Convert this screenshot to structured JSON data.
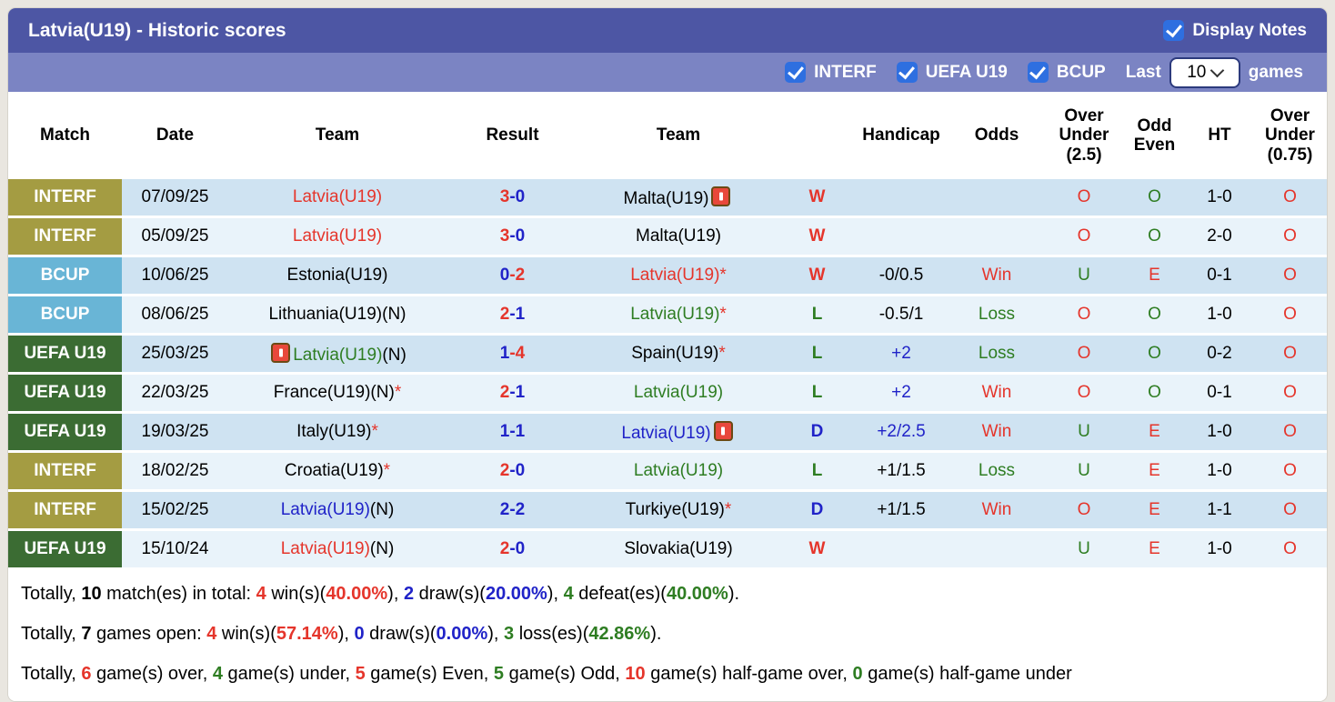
{
  "header": {
    "title": "Latvia(U19) - Historic scores",
    "display_notes_label": "Display Notes",
    "display_notes_checked": true
  },
  "filter_bar": {
    "checkboxes": [
      {
        "label": "INTERF",
        "checked": true
      },
      {
        "label": "UEFA U19",
        "checked": true
      },
      {
        "label": "BCUP",
        "checked": true
      }
    ],
    "last_label": "Last",
    "games_count": "10",
    "games_label": "games"
  },
  "table": {
    "headers": [
      "Match",
      "Date",
      "Team",
      "Result",
      "Team",
      "",
      "Handicap",
      "Odds",
      "Over\nUnder\n(2.5)",
      "Odd\nEven",
      "HT",
      "Over\nUnder\n(0.75)"
    ],
    "rows": [
      {
        "league": {
          "text": "INTERF",
          "style": "interf"
        },
        "date": "07/09/25",
        "home": {
          "name": "Latvia(U19)",
          "color": "red",
          "neutral": false,
          "star": false,
          "icon": null
        },
        "score": {
          "home": "3",
          "away": "0",
          "home_color": "red",
          "away_color": "blue"
        },
        "away": {
          "name": "Malta(U19)",
          "color": "black",
          "neutral": false,
          "star": false,
          "icon": "after"
        },
        "wdl": {
          "text": "W",
          "color": "red"
        },
        "handicap": {
          "text": "",
          "color": "black"
        },
        "odds": {
          "text": "",
          "color": "red"
        },
        "ou25": {
          "text": "O",
          "color": "red"
        },
        "oe": {
          "text": "O",
          "color": "green"
        },
        "ht": "1-0",
        "ou075": {
          "text": "O",
          "color": "red"
        }
      },
      {
        "league": {
          "text": "INTERF",
          "style": "interf"
        },
        "date": "05/09/25",
        "home": {
          "name": "Latvia(U19)",
          "color": "red",
          "neutral": false,
          "star": false,
          "icon": null
        },
        "score": {
          "home": "3",
          "away": "0",
          "home_color": "red",
          "away_color": "blue"
        },
        "away": {
          "name": "Malta(U19)",
          "color": "black",
          "neutral": false,
          "star": false,
          "icon": null
        },
        "wdl": {
          "text": "W",
          "color": "red"
        },
        "handicap": {
          "text": "",
          "color": "black"
        },
        "odds": {
          "text": "",
          "color": "red"
        },
        "ou25": {
          "text": "O",
          "color": "red"
        },
        "oe": {
          "text": "O",
          "color": "green"
        },
        "ht": "2-0",
        "ou075": {
          "text": "O",
          "color": "red"
        }
      },
      {
        "league": {
          "text": "BCUP",
          "style": "bcup"
        },
        "date": "10/06/25",
        "home": {
          "name": "Estonia(U19)",
          "color": "black",
          "neutral": false,
          "star": false,
          "icon": null
        },
        "score": {
          "home": "0",
          "away": "2",
          "home_color": "blue",
          "away_color": "red"
        },
        "away": {
          "name": "Latvia(U19)",
          "color": "red",
          "neutral": false,
          "star": true,
          "icon": null
        },
        "wdl": {
          "text": "W",
          "color": "red"
        },
        "handicap": {
          "text": "-0/0.5",
          "color": "black"
        },
        "odds": {
          "text": "Win",
          "color": "red"
        },
        "ou25": {
          "text": "U",
          "color": "green"
        },
        "oe": {
          "text": "E",
          "color": "red"
        },
        "ht": "0-1",
        "ou075": {
          "text": "O",
          "color": "red"
        }
      },
      {
        "league": {
          "text": "BCUP",
          "style": "bcup"
        },
        "date": "08/06/25",
        "home": {
          "name": "Lithuania(U19)",
          "color": "black",
          "neutral": true,
          "star": false,
          "icon": null
        },
        "score": {
          "home": "2",
          "away": "1",
          "home_color": "red",
          "away_color": "blue"
        },
        "away": {
          "name": "Latvia(U19)",
          "color": "green",
          "neutral": false,
          "star": true,
          "icon": null
        },
        "wdl": {
          "text": "L",
          "color": "green"
        },
        "handicap": {
          "text": "-0.5/1",
          "color": "black"
        },
        "odds": {
          "text": "Loss",
          "color": "green"
        },
        "ou25": {
          "text": "O",
          "color": "red"
        },
        "oe": {
          "text": "O",
          "color": "green"
        },
        "ht": "1-0",
        "ou075": {
          "text": "O",
          "color": "red"
        }
      },
      {
        "league": {
          "text": "UEFA U19",
          "style": "uefa"
        },
        "date": "25/03/25",
        "home": {
          "name": "Latvia(U19)",
          "color": "green",
          "neutral": true,
          "star": false,
          "icon": "before"
        },
        "score": {
          "home": "1",
          "away": "4",
          "home_color": "blue",
          "away_color": "red"
        },
        "away": {
          "name": "Spain(U19)",
          "color": "black",
          "neutral": false,
          "star": true,
          "icon": null
        },
        "wdl": {
          "text": "L",
          "color": "green"
        },
        "handicap": {
          "text": "+2",
          "color": "blue"
        },
        "odds": {
          "text": "Loss",
          "color": "green"
        },
        "ou25": {
          "text": "O",
          "color": "red"
        },
        "oe": {
          "text": "O",
          "color": "green"
        },
        "ht": "0-2",
        "ou075": {
          "text": "O",
          "color": "red"
        }
      },
      {
        "league": {
          "text": "UEFA U19",
          "style": "uefa"
        },
        "date": "22/03/25",
        "home": {
          "name": "France(U19)",
          "color": "black",
          "neutral": true,
          "star": true,
          "icon": null
        },
        "score": {
          "home": "2",
          "away": "1",
          "home_color": "red",
          "away_color": "blue"
        },
        "away": {
          "name": "Latvia(U19)",
          "color": "green",
          "neutral": false,
          "star": false,
          "icon": null
        },
        "wdl": {
          "text": "L",
          "color": "green"
        },
        "handicap": {
          "text": "+2",
          "color": "blue"
        },
        "odds": {
          "text": "Win",
          "color": "red"
        },
        "ou25": {
          "text": "O",
          "color": "red"
        },
        "oe": {
          "text": "O",
          "color": "green"
        },
        "ht": "0-1",
        "ou075": {
          "text": "O",
          "color": "red"
        }
      },
      {
        "league": {
          "text": "UEFA U19",
          "style": "uefa"
        },
        "date": "19/03/25",
        "home": {
          "name": "Italy(U19)",
          "color": "black",
          "neutral": false,
          "star": true,
          "icon": null
        },
        "score": {
          "home": "1",
          "away": "1",
          "home_color": "blue",
          "away_color": "blue"
        },
        "away": {
          "name": "Latvia(U19)",
          "color": "blue",
          "neutral": false,
          "star": false,
          "icon": "after"
        },
        "wdl": {
          "text": "D",
          "color": "blue"
        },
        "handicap": {
          "text": "+2/2.5",
          "color": "blue"
        },
        "odds": {
          "text": "Win",
          "color": "red"
        },
        "ou25": {
          "text": "U",
          "color": "green"
        },
        "oe": {
          "text": "E",
          "color": "red"
        },
        "ht": "1-0",
        "ou075": {
          "text": "O",
          "color": "red"
        }
      },
      {
        "league": {
          "text": "INTERF",
          "style": "interf"
        },
        "date": "18/02/25",
        "home": {
          "name": "Croatia(U19)",
          "color": "black",
          "neutral": false,
          "star": true,
          "icon": null
        },
        "score": {
          "home": "2",
          "away": "0",
          "home_color": "red",
          "away_color": "blue"
        },
        "away": {
          "name": "Latvia(U19)",
          "color": "green",
          "neutral": false,
          "star": false,
          "icon": null
        },
        "wdl": {
          "text": "L",
          "color": "green"
        },
        "handicap": {
          "text": "+1/1.5",
          "color": "black"
        },
        "odds": {
          "text": "Loss",
          "color": "green"
        },
        "ou25": {
          "text": "U",
          "color": "green"
        },
        "oe": {
          "text": "E",
          "color": "red"
        },
        "ht": "1-0",
        "ou075": {
          "text": "O",
          "color": "red"
        }
      },
      {
        "league": {
          "text": "INTERF",
          "style": "interf"
        },
        "date": "15/02/25",
        "home": {
          "name": "Latvia(U19)",
          "color": "blue",
          "neutral": true,
          "star": false,
          "icon": null
        },
        "score": {
          "home": "2",
          "away": "2",
          "home_color": "blue",
          "away_color": "blue"
        },
        "away": {
          "name": "Turkiye(U19)",
          "color": "black",
          "neutral": false,
          "star": true,
          "icon": null
        },
        "wdl": {
          "text": "D",
          "color": "blue"
        },
        "handicap": {
          "text": "+1/1.5",
          "color": "black"
        },
        "odds": {
          "text": "Win",
          "color": "red"
        },
        "ou25": {
          "text": "O",
          "color": "red"
        },
        "oe": {
          "text": "E",
          "color": "red"
        },
        "ht": "1-1",
        "ou075": {
          "text": "O",
          "color": "red"
        }
      },
      {
        "league": {
          "text": "UEFA U19",
          "style": "uefa"
        },
        "date": "15/10/24",
        "home": {
          "name": "Latvia(U19)",
          "color": "red",
          "neutral": true,
          "star": false,
          "icon": null
        },
        "score": {
          "home": "2",
          "away": "0",
          "home_color": "red",
          "away_color": "blue"
        },
        "away": {
          "name": "Slovakia(U19)",
          "color": "black",
          "neutral": false,
          "star": false,
          "icon": null
        },
        "wdl": {
          "text": "W",
          "color": "red"
        },
        "handicap": {
          "text": "",
          "color": "black"
        },
        "odds": {
          "text": "",
          "color": "red"
        },
        "ou25": {
          "text": "U",
          "color": "green"
        },
        "oe": {
          "text": "E",
          "color": "red"
        },
        "ht": "1-0",
        "ou075": {
          "text": "O",
          "color": "red"
        }
      }
    ]
  },
  "summary": {
    "lines": [
      [
        {
          "t": "Totally, ",
          "c": "black",
          "b": false
        },
        {
          "t": "10",
          "c": "black",
          "b": true
        },
        {
          "t": " match(es) in total: ",
          "c": "black",
          "b": false
        },
        {
          "t": "4",
          "c": "red",
          "b": true
        },
        {
          "t": " win(s)(",
          "c": "black",
          "b": false
        },
        {
          "t": "40.00%",
          "c": "red",
          "b": true
        },
        {
          "t": "), ",
          "c": "black",
          "b": false
        },
        {
          "t": "2",
          "c": "blue",
          "b": true
        },
        {
          "t": " draw(s)(",
          "c": "black",
          "b": false
        },
        {
          "t": "20.00%",
          "c": "blue",
          "b": true
        },
        {
          "t": "), ",
          "c": "black",
          "b": false
        },
        {
          "t": "4",
          "c": "green",
          "b": true
        },
        {
          "t": " defeat(es)(",
          "c": "black",
          "b": false
        },
        {
          "t": "40.00%",
          "c": "green",
          "b": true
        },
        {
          "t": ").",
          "c": "black",
          "b": false
        }
      ],
      [
        {
          "t": "Totally, ",
          "c": "black",
          "b": false
        },
        {
          "t": "7",
          "c": "black",
          "b": true
        },
        {
          "t": " games open: ",
          "c": "black",
          "b": false
        },
        {
          "t": "4",
          "c": "red",
          "b": true
        },
        {
          "t": " win(s)(",
          "c": "black",
          "b": false
        },
        {
          "t": "57.14%",
          "c": "red",
          "b": true
        },
        {
          "t": "), ",
          "c": "black",
          "b": false
        },
        {
          "t": "0",
          "c": "blue",
          "b": true
        },
        {
          "t": " draw(s)(",
          "c": "black",
          "b": false
        },
        {
          "t": "0.00%",
          "c": "blue",
          "b": true
        },
        {
          "t": "), ",
          "c": "black",
          "b": false
        },
        {
          "t": "3",
          "c": "green",
          "b": true
        },
        {
          "t": " loss(es)(",
          "c": "black",
          "b": false
        },
        {
          "t": "42.86%",
          "c": "green",
          "b": true
        },
        {
          "t": ").",
          "c": "black",
          "b": false
        }
      ],
      [
        {
          "t": "Totally, ",
          "c": "black",
          "b": false
        },
        {
          "t": "6",
          "c": "red",
          "b": true
        },
        {
          "t": " game(s) over, ",
          "c": "black",
          "b": false
        },
        {
          "t": "4",
          "c": "green",
          "b": true
        },
        {
          "t": " game(s) under, ",
          "c": "black",
          "b": false
        },
        {
          "t": "5",
          "c": "red",
          "b": true
        },
        {
          "t": " game(s) Even, ",
          "c": "black",
          "b": false
        },
        {
          "t": "5",
          "c": "green",
          "b": true
        },
        {
          "t": " game(s) Odd, ",
          "c": "black",
          "b": false
        },
        {
          "t": "10",
          "c": "red",
          "b": true
        },
        {
          "t": " game(s) half-game over, ",
          "c": "black",
          "b": false
        },
        {
          "t": "0",
          "c": "green",
          "b": true
        },
        {
          "t": " game(s) half-game under",
          "c": "black",
          "b": false
        }
      ]
    ]
  },
  "colors": {
    "title_bar": "#4d56a4",
    "filter_bar": "#7b84c3",
    "checkbox_blue": "#2e6fe0",
    "badge_interf": "#a49c42",
    "badge_bcup": "#69b5d6",
    "badge_uefa": "#3b6c33",
    "row_dark": "#cfe3f2",
    "row_light": "#e9f3fa",
    "text_red": "#e5352b",
    "text_green": "#2e7d22",
    "text_blue": "#2023c8"
  },
  "icons": {
    "note_icon": "red-note-icon",
    "checkbox_check": "check-mark",
    "select_chevron": "chevron-down"
  }
}
